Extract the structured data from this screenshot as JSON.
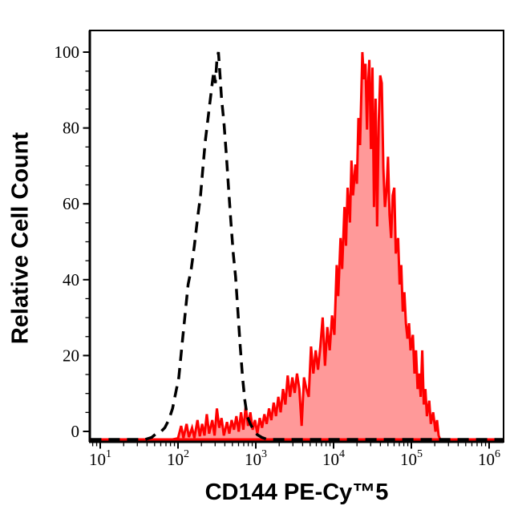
{
  "figure": {
    "background": "#ffffff",
    "x_axis_title": "CD144 PE-Cy™5",
    "y_axis_title": "Relative Cell Count"
  },
  "chart_data": {
    "type": "area",
    "subtype": "flow-cytometry-overlay-histogram",
    "title": "",
    "xlabel": "CD144 PE-Cy™5",
    "ylabel": "Relative Cell Count",
    "grid": false,
    "legend": false,
    "x_axis": {
      "scale": "log10",
      "range_log10": [
        0.87,
        6.19
      ],
      "major_ticks_log10": [
        1,
        2,
        3,
        4,
        5,
        6
      ],
      "major_tick_labels": [
        {
          "base": "10",
          "exponent": "1"
        },
        {
          "base": "10",
          "exponent": "2"
        },
        {
          "base": "10",
          "exponent": "3"
        },
        {
          "base": "10",
          "exponent": "4"
        },
        {
          "base": "10",
          "exponent": "5"
        },
        {
          "base": "10",
          "exponent": "6"
        }
      ],
      "minor_ticks": "2-9 within each decade"
    },
    "y_axis": {
      "scale": "linear",
      "range": [
        0,
        105
      ],
      "major_ticks": [
        0,
        20,
        40,
        60,
        80,
        100
      ],
      "minor_tick_step": 5
    },
    "colors": {
      "frame": "#000000",
      "control_line": "#000000",
      "stained_line": "#ff0000",
      "stained_fill": "#ff9999"
    },
    "series": [
      {
        "name": "dashed-black-control-histogram",
        "line_style": "dashed",
        "color": "#000000",
        "fill": "none",
        "points_log10x_y": [
          [
            0.87,
            0
          ],
          [
            1.58,
            0
          ],
          [
            1.66,
            0.5
          ],
          [
            1.72,
            1.5
          ],
          [
            1.78,
            2
          ],
          [
            1.83,
            3
          ],
          [
            1.88,
            5
          ],
          [
            1.93,
            8
          ],
          [
            1.97,
            12
          ],
          [
            2.01,
            16
          ],
          [
            2.05,
            24
          ],
          [
            2.09,
            32
          ],
          [
            2.13,
            40
          ],
          [
            2.17,
            44
          ],
          [
            2.21,
            50
          ],
          [
            2.25,
            57
          ],
          [
            2.29,
            63
          ],
          [
            2.32,
            70
          ],
          [
            2.35,
            77
          ],
          [
            2.38,
            82
          ],
          [
            2.41,
            87
          ],
          [
            2.44,
            92
          ],
          [
            2.46,
            95
          ],
          [
            2.48,
            92
          ],
          [
            2.5,
            98
          ],
          [
            2.52,
            100
          ],
          [
            2.54,
            94
          ],
          [
            2.56,
            88
          ],
          [
            2.59,
            82
          ],
          [
            2.62,
            74
          ],
          [
            2.65,
            65
          ],
          [
            2.68,
            56
          ],
          [
            2.71,
            48
          ],
          [
            2.74,
            42
          ],
          [
            2.77,
            33
          ],
          [
            2.8,
            24
          ],
          [
            2.83,
            16
          ],
          [
            2.86,
            10
          ],
          [
            2.89,
            6
          ],
          [
            2.93,
            4
          ],
          [
            2.97,
            2.5
          ],
          [
            3.02,
            1.2
          ],
          [
            3.08,
            0.5
          ],
          [
            3.15,
            0
          ],
          [
            6.19,
            0
          ]
        ]
      },
      {
        "name": "solid-red-filled-cd144-histogram",
        "line_style": "solid",
        "color": "#ff0000",
        "fill": "#ff9999",
        "points_log10x_y": [
          [
            0.87,
            0
          ],
          [
            1.93,
            0
          ],
          [
            2.0,
            0.3
          ],
          [
            2.04,
            3.5
          ],
          [
            2.07,
            0.4
          ],
          [
            2.11,
            4
          ],
          [
            2.14,
            0.6
          ],
          [
            2.18,
            3
          ],
          [
            2.21,
            0.4
          ],
          [
            2.25,
            5
          ],
          [
            2.28,
            0.8
          ],
          [
            2.31,
            4
          ],
          [
            2.34,
            1
          ],
          [
            2.37,
            6.5
          ],
          [
            2.4,
            1.5
          ],
          [
            2.44,
            5
          ],
          [
            2.47,
            1
          ],
          [
            2.5,
            8
          ],
          [
            2.53,
            3
          ],
          [
            2.56,
            5.5
          ],
          [
            2.59,
            1
          ],
          [
            2.63,
            4.5
          ],
          [
            2.66,
            1.5
          ],
          [
            2.69,
            5
          ],
          [
            2.72,
            2.5
          ],
          [
            2.75,
            6
          ],
          [
            2.78,
            2
          ],
          [
            2.81,
            7
          ],
          [
            2.84,
            2.5
          ],
          [
            2.87,
            8.5
          ],
          [
            2.9,
            3.5
          ],
          [
            2.93,
            7
          ],
          [
            2.96,
            2.5
          ],
          [
            2.99,
            5
          ],
          [
            3.02,
            1.5
          ],
          [
            3.05,
            5.5
          ],
          [
            3.08,
            3
          ],
          [
            3.11,
            6.5
          ],
          [
            3.14,
            4
          ],
          [
            3.17,
            8
          ],
          [
            3.2,
            5
          ],
          [
            3.23,
            9.5
          ],
          [
            3.26,
            6
          ],
          [
            3.29,
            11
          ],
          [
            3.32,
            7
          ],
          [
            3.35,
            13
          ],
          [
            3.38,
            9
          ],
          [
            3.41,
            16.5
          ],
          [
            3.44,
            11
          ],
          [
            3.47,
            16
          ],
          [
            3.5,
            12
          ],
          [
            3.53,
            17
          ],
          [
            3.56,
            13
          ],
          [
            3.59,
            3.5
          ],
          [
            3.62,
            16
          ],
          [
            3.65,
            13
          ],
          [
            3.68,
            11
          ],
          [
            3.71,
            24
          ],
          [
            3.74,
            17
          ],
          [
            3.77,
            23
          ],
          [
            3.8,
            18
          ],
          [
            3.83,
            24
          ],
          [
            3.86,
            31.5
          ],
          [
            3.89,
            19
          ],
          [
            3.92,
            29
          ],
          [
            3.95,
            23
          ],
          [
            3.98,
            32
          ],
          [
            4.01,
            27
          ],
          [
            4.04,
            45
          ],
          [
            4.06,
            37
          ],
          [
            4.09,
            52
          ],
          [
            4.11,
            44
          ],
          [
            4.14,
            60
          ],
          [
            4.16,
            50
          ],
          [
            4.18,
            65
          ],
          [
            4.21,
            56
          ],
          [
            4.23,
            72
          ],
          [
            4.25,
            63
          ],
          [
            4.28,
            71
          ],
          [
            4.3,
            66
          ],
          [
            4.32,
            83
          ],
          [
            4.34,
            76
          ],
          [
            4.37,
            100
          ],
          [
            4.39,
            93
          ],
          [
            4.41,
            97
          ],
          [
            4.43,
            80
          ],
          [
            4.44,
            90
          ],
          [
            4.46,
            98
          ],
          [
            4.48,
            75
          ],
          [
            4.5,
            96
          ],
          [
            4.52,
            60
          ],
          [
            4.54,
            88
          ],
          [
            4.56,
            55
          ],
          [
            4.58,
            82
          ],
          [
            4.6,
            94
          ],
          [
            4.62,
            92
          ],
          [
            4.64,
            70
          ],
          [
            4.66,
            60
          ],
          [
            4.68,
            64
          ],
          [
            4.7,
            73
          ],
          [
            4.72,
            58
          ],
          [
            4.74,
            52
          ],
          [
            4.76,
            63
          ],
          [
            4.78,
            65
          ],
          [
            4.8,
            48
          ],
          [
            4.83,
            52
          ],
          [
            4.85,
            40
          ],
          [
            4.87,
            45
          ],
          [
            4.89,
            33
          ],
          [
            4.91,
            38
          ],
          [
            4.93,
            30
          ],
          [
            4.95,
            26
          ],
          [
            4.97,
            30
          ],
          [
            4.99,
            23
          ],
          [
            5.02,
            27
          ],
          [
            5.04,
            17
          ],
          [
            5.06,
            23
          ],
          [
            5.08,
            13
          ],
          [
            5.1,
            17
          ],
          [
            5.12,
            11
          ],
          [
            5.14,
            23
          ],
          [
            5.16,
            9
          ],
          [
            5.18,
            13
          ],
          [
            5.2,
            6
          ],
          [
            5.23,
            10
          ],
          [
            5.25,
            4
          ],
          [
            5.28,
            7
          ],
          [
            5.31,
            2
          ],
          [
            5.33,
            5
          ],
          [
            5.35,
            1
          ],
          [
            5.37,
            0
          ],
          [
            6.19,
            0
          ]
        ]
      }
    ]
  }
}
